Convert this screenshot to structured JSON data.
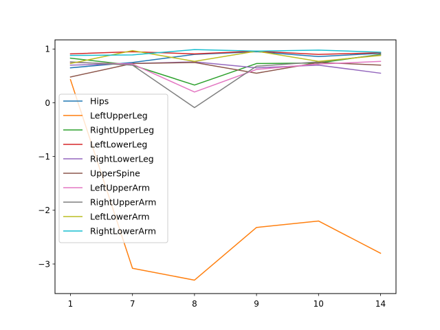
{
  "chart_data": {
    "type": "line",
    "title": "",
    "xlabel": "",
    "ylabel": "",
    "x": [
      "1",
      "7",
      "8",
      "9",
      "10",
      "14"
    ],
    "ylim": [
      -3.55,
      1.17
    ],
    "yticks": [
      1,
      0,
      -1,
      -2,
      -3
    ],
    "ytick_labels": [
      "1",
      "0",
      "−1",
      "−2",
      "−3"
    ],
    "grid": false,
    "legend_position": "center-left",
    "series": [
      {
        "name": "Hips",
        "color": "#1f77b4",
        "values": [
          0.65,
          0.75,
          0.9,
          0.95,
          0.86,
          0.92
        ]
      },
      {
        "name": "LeftUpperLeg",
        "color": "#ff7f0e",
        "values": [
          0.43,
          -3.08,
          -3.3,
          -2.32,
          -2.2,
          -2.8
        ]
      },
      {
        "name": "RightUpperLeg",
        "color": "#2ca02c",
        "values": [
          0.83,
          0.7,
          0.33,
          0.73,
          0.74,
          0.9
        ]
      },
      {
        "name": "LeftLowerLeg",
        "color": "#d62728",
        "values": [
          0.91,
          0.95,
          0.91,
          0.96,
          0.9,
          0.93
        ]
      },
      {
        "name": "RightLowerLeg",
        "color": "#9467bd",
        "values": [
          0.7,
          0.73,
          0.76,
          0.65,
          0.7,
          0.55
        ]
      },
      {
        "name": "UpperSpine",
        "color": "#8c564b",
        "values": [
          0.48,
          0.73,
          0.75,
          0.55,
          0.75,
          0.7
        ]
      },
      {
        "name": "LeftUpperArm",
        "color": "#e377c2",
        "values": [
          0.75,
          0.72,
          0.2,
          0.62,
          0.72,
          0.77
        ]
      },
      {
        "name": "RightUpperArm",
        "color": "#7f7f7f",
        "values": [
          0.76,
          0.7,
          -0.09,
          0.68,
          0.76,
          0.89
        ]
      },
      {
        "name": "LeftLowerArm",
        "color": "#bcbd22",
        "values": [
          0.73,
          0.97,
          0.77,
          0.96,
          0.77,
          0.88
        ]
      },
      {
        "name": "RightLowerArm",
        "color": "#17becf",
        "values": [
          0.88,
          0.89,
          0.99,
          0.96,
          0.98,
          0.94
        ]
      }
    ]
  }
}
